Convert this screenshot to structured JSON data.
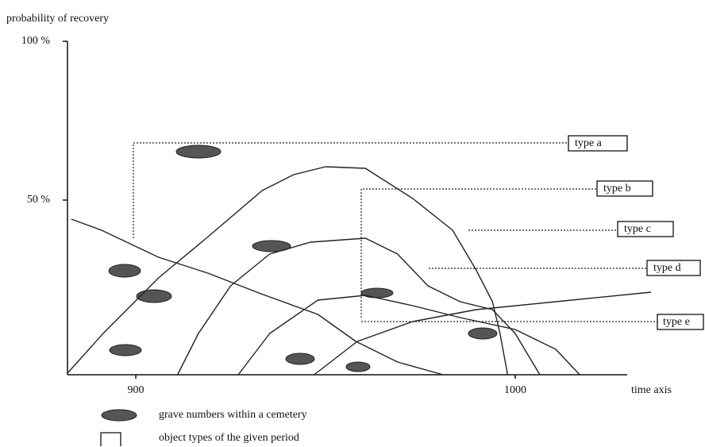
{
  "chart_data": {
    "type": "line",
    "ylabel": "probability of recovery",
    "xlabel": "time axis",
    "xlim": [
      882,
      1036
    ],
    "xticks": [
      900,
      1000
    ],
    "ylim": [
      -5,
      100
    ],
    "yticks": [
      {
        "value": 100,
        "label": "100 %"
      },
      {
        "value": 50,
        "label": "50 %"
      }
    ],
    "series": [
      {
        "name": "type a",
        "color": "#222",
        "x": [
          883,
          891,
          906,
          919,
          933,
          948,
          958,
          969,
          981
        ],
        "values": [
          44,
          40.5,
          32,
          27,
          20.5,
          14,
          5.5,
          -1,
          -5
        ]
      },
      {
        "name": "type b",
        "color": "#222",
        "x": [
          882,
          891.4,
          906,
          918.6,
          933.3,
          941.6,
          950,
          960.5,
          973,
          983.5,
          989.7,
          994,
          996,
          998
        ],
        "values": [
          -4.5,
          8,
          25.5,
          38,
          53,
          58,
          60.5,
          60,
          50.5,
          40.5,
          28,
          18,
          8,
          -5
        ]
      },
      {
        "name": "type c",
        "color": "#222",
        "x": [
          911,
          916.5,
          925,
          935.3,
          946,
          960.5,
          969,
          977,
          985.5,
          994,
          1000,
          1006.5
        ],
        "values": [
          -5,
          8,
          23,
          33,
          36.75,
          38,
          33,
          23,
          18,
          15.5,
          8,
          -5
        ]
      },
      {
        "name": "type d",
        "color": "#222",
        "x": [
          927,
          935.3,
          948,
          960.5,
          973,
          985.5,
          1000,
          1010.7,
          1017
        ],
        "values": [
          -5,
          8,
          18.5,
          20,
          16.75,
          13,
          9.25,
          3,
          -5
        ]
      },
      {
        "name": "type e",
        "color": "#222",
        "x": [
          947,
          958.4,
          973,
          989.7,
          1010.7,
          1035.8
        ],
        "values": [
          -5,
          5.5,
          11.75,
          15.5,
          18,
          21
        ]
      }
    ],
    "legend": [
      "grave numbers within a cemetery",
      "object  types of the given period"
    ]
  }
}
